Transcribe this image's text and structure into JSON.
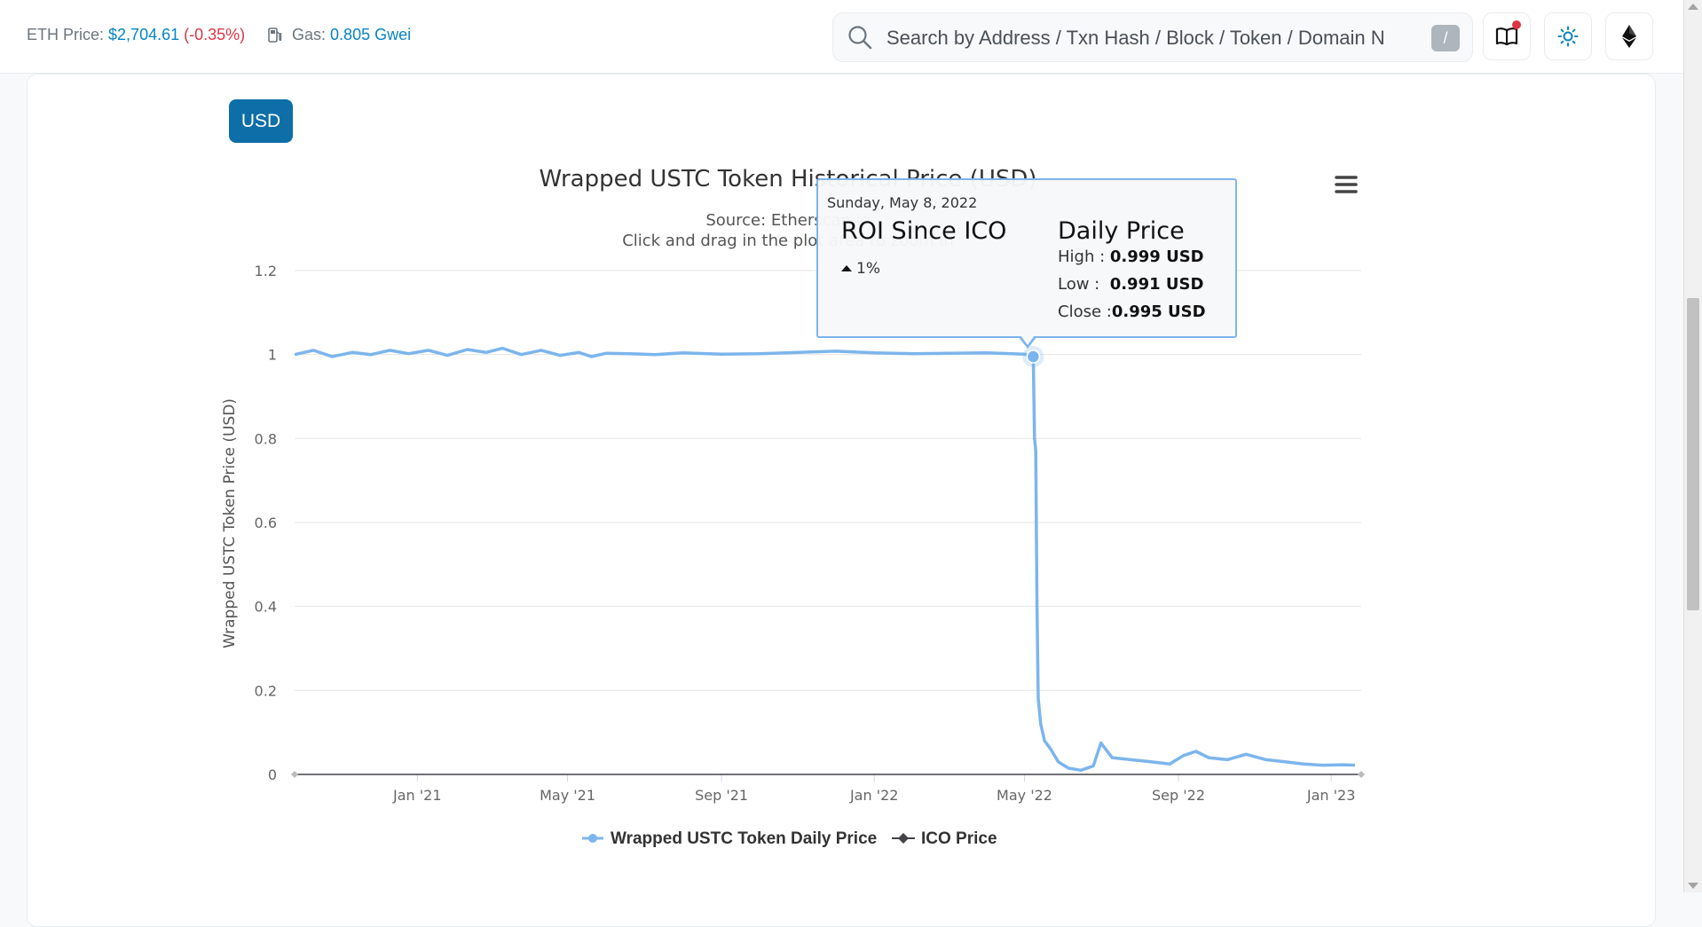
{
  "topbar": {
    "eth_price_label": "ETH Price:",
    "eth_price_value": "$2,704.61",
    "eth_price_change": "(-0.35%)",
    "gas_label": "Gas:",
    "gas_value": "0.805 Gwei",
    "search_placeholder": "Search by Address / Txn Hash / Block / Token / Domain Name",
    "search_shortcut": "/",
    "icons": [
      "search-icon",
      "book-icon",
      "sun-icon",
      "ethereum-icon"
    ]
  },
  "currency_button": "USD",
  "tooltip": {
    "date": "Sunday, May 8, 2022",
    "roi_title": "ROI Since ICO",
    "roi_value": "1%",
    "daily_title": "Daily Price",
    "high_label": "High :",
    "high_value": "0.999 USD",
    "low_label": "Low :",
    "low_value": "0.991 USD",
    "close_label": "Close :",
    "close_value": "0.995 USD"
  },
  "colors": {
    "series": "#7cb5ec",
    "ico": "#434348",
    "link": "#0784c3",
    "negative": "#dc3545",
    "button": "#0d6ea8"
  },
  "chart_data": {
    "type": "line",
    "title": "Wrapped USTC Token Historical Price (USD)",
    "subtitle_lines": [
      "Source: Etherscan.io",
      "Click and drag in the plot area to zoom in"
    ],
    "ylabel": "Wrapped USTC Token Price (USD)",
    "xlabel": "",
    "ylim": [
      0,
      1.2
    ],
    "yticks": [
      "0",
      "0.2",
      "0.4",
      "0.6",
      "0.8",
      "1",
      "1.2"
    ],
    "xticks": [
      "Jan '21",
      "May '21",
      "Sep '21",
      "Jan '22",
      "May '22",
      "Sep '22",
      "Jan '23"
    ],
    "xlim": [
      "2020-09-25",
      "2023-01-25"
    ],
    "grid": true,
    "legend_position": "bottom",
    "series": [
      {
        "name": "Wrapped USTC Token Daily Price",
        "x": [
          "2020-09-25",
          "2020-10-10",
          "2020-10-25",
          "2020-11-10",
          "2020-11-25",
          "2020-12-10",
          "2020-12-25",
          "2021-01-10",
          "2021-01-25",
          "2021-02-10",
          "2021-02-25",
          "2021-03-10",
          "2021-03-25",
          "2021-04-10",
          "2021-04-25",
          "2021-05-10",
          "2021-05-20",
          "2021-06-01",
          "2021-06-20",
          "2021-07-10",
          "2021-08-01",
          "2021-09-01",
          "2021-10-01",
          "2021-11-01",
          "2021-12-01",
          "2022-01-01",
          "2022-02-01",
          "2022-03-01",
          "2022-04-01",
          "2022-05-01",
          "2022-05-08",
          "2022-05-09",
          "2022-05-10",
          "2022-05-11",
          "2022-05-12",
          "2022-05-14",
          "2022-05-17",
          "2022-05-22",
          "2022-05-28",
          "2022-06-05",
          "2022-06-15",
          "2022-06-25",
          "2022-07-01",
          "2022-07-10",
          "2022-07-25",
          "2022-08-10",
          "2022-08-25",
          "2022-09-05",
          "2022-09-15",
          "2022-09-25",
          "2022-10-10",
          "2022-10-25",
          "2022-11-10",
          "2022-11-25",
          "2022-12-10",
          "2022-12-25",
          "2023-01-10",
          "2023-01-20"
        ],
        "y": [
          1.0,
          1.01,
          0.995,
          1.005,
          1.0,
          1.01,
          1.002,
          1.01,
          0.998,
          1.012,
          1.005,
          1.015,
          1.0,
          1.01,
          0.998,
          1.005,
          0.995,
          1.003,
          1.002,
          1.0,
          1.004,
          1.001,
          1.002,
          1.005,
          1.008,
          1.004,
          1.002,
          1.003,
          1.004,
          1.001,
          0.995,
          0.8,
          0.77,
          0.4,
          0.18,
          0.12,
          0.08,
          0.06,
          0.03,
          0.015,
          0.01,
          0.02,
          0.075,
          0.04,
          0.035,
          0.03,
          0.025,
          0.045,
          0.055,
          0.04,
          0.035,
          0.048,
          0.035,
          0.03,
          0.025,
          0.022,
          0.023,
          0.022
        ]
      },
      {
        "name": "ICO Price",
        "x": [
          "2020-09-25",
          "2023-01-25"
        ],
        "y": [
          0,
          0
        ]
      }
    ]
  }
}
